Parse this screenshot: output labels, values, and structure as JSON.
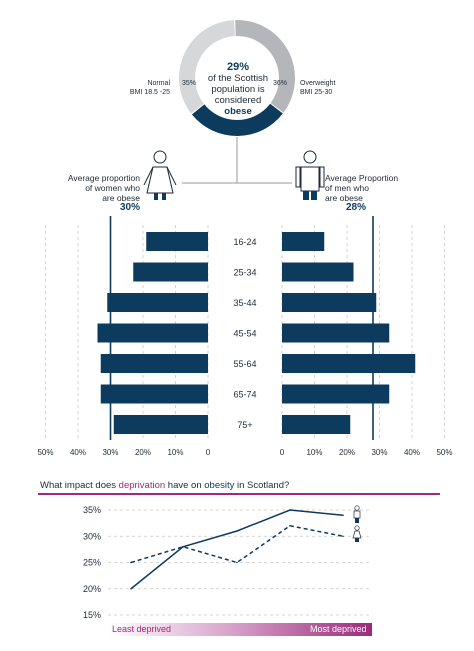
{
  "donut": {
    "title_pct": "29%",
    "title_lines": [
      "of the Scottish",
      "population is",
      "considered"
    ],
    "title_emph": "obese",
    "segments": [
      {
        "label": "Normal",
        "sublabel": "BMI 18.5 -25",
        "value": 35,
        "value_label": "35%",
        "color": "#d6d7d9"
      },
      {
        "label": "Overweight",
        "sublabel": "BMI 25-30",
        "value": 36,
        "value_label": "36%",
        "color": "#b4b6b9"
      },
      {
        "label": "Obese",
        "value": 29,
        "color": "#0d3b5e"
      }
    ]
  },
  "women": {
    "lines": [
      "Average proportion",
      "of women who",
      "are obese"
    ],
    "avg": "30%",
    "avg_value": 30
  },
  "men": {
    "lines": [
      "Average Proportion",
      "of men who",
      "are obese"
    ],
    "avg": "28%",
    "avg_value": 28
  },
  "chart_data": [
    {
      "type": "bar",
      "orientation": "horizontal",
      "categories": [
        "16-24",
        "25-34",
        "35-44",
        "45-54",
        "55-64",
        "65-74",
        "75+"
      ],
      "series": [
        {
          "name": "Women",
          "values": [
            19,
            23,
            31,
            34,
            33,
            33,
            29
          ]
        },
        {
          "name": "Men",
          "values": [
            13,
            22,
            29,
            33,
            41,
            33,
            21
          ]
        }
      ],
      "xticks_left": [
        "50%",
        "40%",
        "30%",
        "20%",
        "10%",
        "0"
      ],
      "xticks_right": [
        "0",
        "10%",
        "20%",
        "30%",
        "40%",
        "50%"
      ],
      "xlim": [
        0,
        50
      ],
      "color": "#0d3b5e"
    },
    {
      "type": "line",
      "title": "What impact does deprivation have on obesity in Scotland?",
      "title_parts": [
        "What impact does ",
        "deprivation",
        " have on ",
        "obesity",
        " in Scotland?"
      ],
      "x": [
        1,
        2,
        3,
        4,
        5
      ],
      "series": [
        {
          "name": "Men",
          "style": "solid",
          "values": [
            20,
            28,
            31,
            35,
            34
          ]
        },
        {
          "name": "Women",
          "style": "dashed",
          "values": [
            25,
            28,
            25,
            32,
            30
          ]
        }
      ],
      "yticks": [
        "35%",
        "30%",
        "25%",
        "20%",
        "15%"
      ],
      "ylim": [
        15,
        35
      ],
      "xlabel_left": "Least deprived",
      "xlabel_right": "Most deprived"
    }
  ],
  "colors": {
    "navy": "#0d3b5e",
    "magenta": "#a3287a",
    "grid": "#c8c8c8"
  }
}
